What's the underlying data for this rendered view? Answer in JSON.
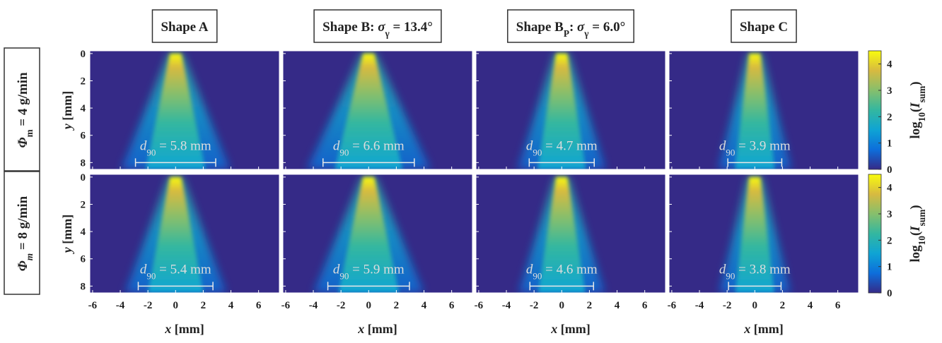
{
  "chart_data": {
    "type": "heatmap-grid",
    "columns": [
      [
        {
          "text": "Shape A"
        }
      ],
      [
        {
          "text": "Shape B: "
        },
        {
          "text": "σ",
          "italic": true
        },
        {
          "text": "γ",
          "sub": true
        },
        {
          "text": " = 13.4°"
        }
      ],
      [
        {
          "text": "Shape B"
        },
        {
          "text": "P",
          "sub": true
        },
        {
          "text": ": "
        },
        {
          "text": "σ",
          "italic": true
        },
        {
          "text": "γ",
          "sub": true
        },
        {
          "text": " = 6.0°"
        }
      ],
      [
        {
          "text": "Shape C"
        }
      ]
    ],
    "rows": [
      [
        {
          "text": "Φ",
          "italic": true
        },
        {
          "text": "m",
          "sub": true
        },
        {
          "text": " = 4 g/min"
        }
      ],
      [
        {
          "text": "Φ",
          "italic": true
        },
        {
          "text": "m",
          "sub": true,
          "italic": true
        },
        {
          "text": " = 8 g/min"
        }
      ]
    ],
    "annotation_symbol": [
      {
        "text": "d",
        "italic": true
      },
      {
        "text": "90",
        "sub": true
      }
    ],
    "panels": [
      [
        {
          "d90": 5.8,
          "d90_label": " = 5.8 mm"
        },
        {
          "d90": 6.6,
          "d90_label": " = 6.6 mm"
        },
        {
          "d90": 4.7,
          "d90_label": " = 4.7 mm"
        },
        {
          "d90": 3.9,
          "d90_label": " = 3.9 mm"
        }
      ],
      [
        {
          "d90": 5.4,
          "d90_label": " = 5.4 mm"
        },
        {
          "d90": 5.9,
          "d90_label": " = 5.9 mm"
        },
        {
          "d90": 4.6,
          "d90_label": " = 4.6 mm"
        },
        {
          "d90": 3.8,
          "d90_label": " = 3.8 mm"
        }
      ]
    ],
    "x_label": [
      {
        "text": "x",
        "italic": true
      },
      {
        "text": " [mm]"
      }
    ],
    "y_label": [
      {
        "text": "y",
        "italic": true
      },
      {
        "text": " [mm]"
      }
    ],
    "xlim": [
      -6.2,
      7.5
    ],
    "xticks": [
      -6,
      -4,
      -2,
      0,
      2,
      4,
      6
    ],
    "ylim": [
      -0.2,
      8.5
    ],
    "yticks": [
      0,
      2,
      4,
      6,
      8
    ],
    "colorbar_label": [
      {
        "text": "log"
      },
      {
        "text": "10",
        "sub": true
      },
      {
        "text": "("
      },
      {
        "text": "I",
        "italic": true
      },
      {
        "text": "sum",
        "sub": true
      },
      {
        "text": ")"
      }
    ],
    "clim": [
      0,
      4.5
    ],
    "cticks": [
      0,
      1,
      2,
      3,
      4
    ],
    "colormap": [
      "#352a87",
      "#0d6edb",
      "#0fa4d4",
      "#33b7a0",
      "#86bf6c",
      "#d7ba40",
      "#f9fb0e"
    ]
  }
}
